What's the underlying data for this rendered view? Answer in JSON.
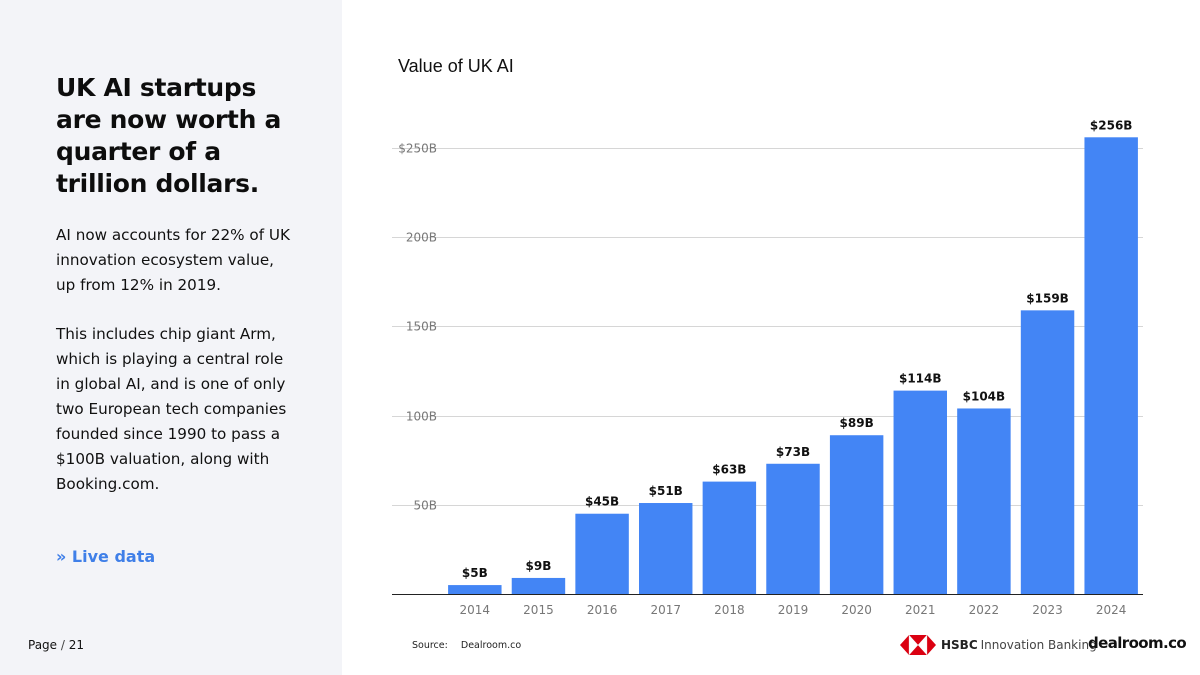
{
  "sidebar": {
    "headline": "UK AI startups are now worth a quarter of a trillion dollars.",
    "paragraph1": "AI now accounts for 22% of UK innovation ecosystem value, up from 12% in 2019.",
    "paragraph2": "This includes chip giant Arm, which is playing a central role in global AI, and is one of only two European tech companies founded since 1990 to pass a $100B valuation, along with Booking.com.",
    "live_data_link": "» Live data"
  },
  "footer": {
    "page_label": "Page",
    "page_sep": "/",
    "page_number": "21",
    "source_label": "Source:",
    "source_value": "Dealroom.co",
    "hsbc_brand": "HSBC",
    "hsbc_sub": "Innovation Banking",
    "dealroom_logo": "dealroom.co"
  },
  "colors": {
    "bar": "#4385f5",
    "accent": "#3f7fe8",
    "panel": "#f3f4f8",
    "hsbc_red": "#db0011"
  },
  "chart_data": {
    "type": "bar",
    "title": "Value of UK AI",
    "xlabel": "",
    "ylabel": "",
    "categories": [
      "2014",
      "2015",
      "2016",
      "2017",
      "2018",
      "2019",
      "2020",
      "2021",
      "2022",
      "2023",
      "2024"
    ],
    "values": [
      5,
      9,
      45,
      51,
      63,
      73,
      89,
      114,
      104,
      159,
      256
    ],
    "data_labels": [
      "$5B",
      "$9B",
      "$45B",
      "$51B",
      "$63B",
      "$73B",
      "$89B",
      "$114B",
      "$104B",
      "$159B",
      "$256B"
    ],
    "yticks": [
      50,
      100,
      150,
      200,
      250
    ],
    "ytick_labels": [
      "50B",
      "100B",
      "150B",
      "200B",
      "$250B"
    ],
    "ylim": [
      0,
      256
    ],
    "grid": true,
    "unit": "$B"
  }
}
